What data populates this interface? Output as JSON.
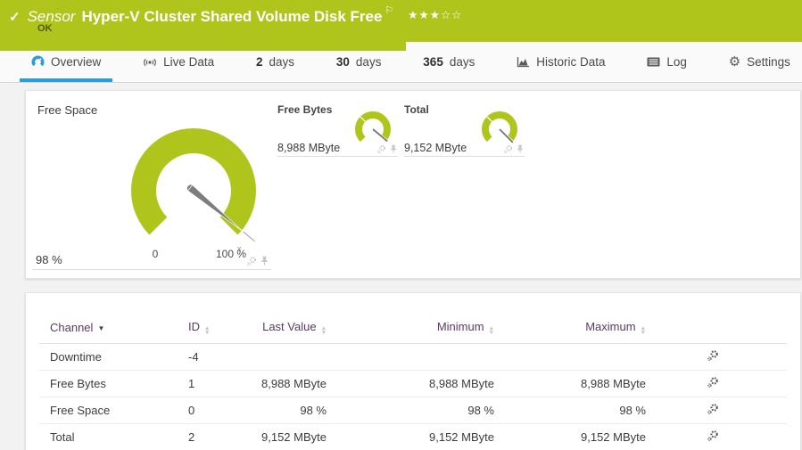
{
  "header": {
    "kind_label": "Sensor",
    "title": "Hyper-V Cluster Shared Volume Disk Free",
    "status": "OK",
    "priority_stars_filled": 3,
    "priority_stars_total": 5
  },
  "icons": {
    "check": "✓",
    "flag": "⚐",
    "star_filled": "★",
    "star_empty": "☆",
    "gear": "⚙",
    "sort_down": "▼",
    "sort_up": "▲"
  },
  "tabs": [
    {
      "label": "Overview",
      "active": true
    },
    {
      "label": "Live Data"
    },
    {
      "num": "2",
      "label": "days"
    },
    {
      "num": "30",
      "label": "days"
    },
    {
      "num": "365",
      "label": "days"
    },
    {
      "label": "Historic Data"
    },
    {
      "label": "Log"
    },
    {
      "label": "Settings"
    }
  ],
  "gauges": {
    "primary": {
      "name": "Free Space",
      "value": "98 %",
      "min_label": "0",
      "max_label": "100 %",
      "percent": 98,
      "marker": "x"
    },
    "secondary": [
      {
        "name": "Free Bytes",
        "value": "8,988 MByte",
        "percent": 98
      },
      {
        "name": "Total",
        "value": "9,152 MByte",
        "percent": 100
      }
    ]
  },
  "table": {
    "columns": [
      "Channel",
      "ID",
      "Last Value",
      "Minimum",
      "Maximum"
    ],
    "rows": [
      {
        "channel": "Downtime",
        "id": "-4",
        "last": "",
        "min": "",
        "max": ""
      },
      {
        "channel": "Free Bytes",
        "id": "1",
        "last": "8,988 MByte",
        "min": "8,988 MByte",
        "max": "8,988 MByte"
      },
      {
        "channel": "Free Space",
        "id": "0",
        "last": "98 %",
        "min": "98 %",
        "max": "98 %"
      },
      {
        "channel": "Total",
        "id": "2",
        "last": "9,152 MByte",
        "min": "9,152 MByte",
        "max": "9,152 MByte"
      }
    ]
  },
  "colors": {
    "status_green": "#b0c51c",
    "accent_blue": "#2b9ed8",
    "table_header_purple": "#5b3a66"
  }
}
